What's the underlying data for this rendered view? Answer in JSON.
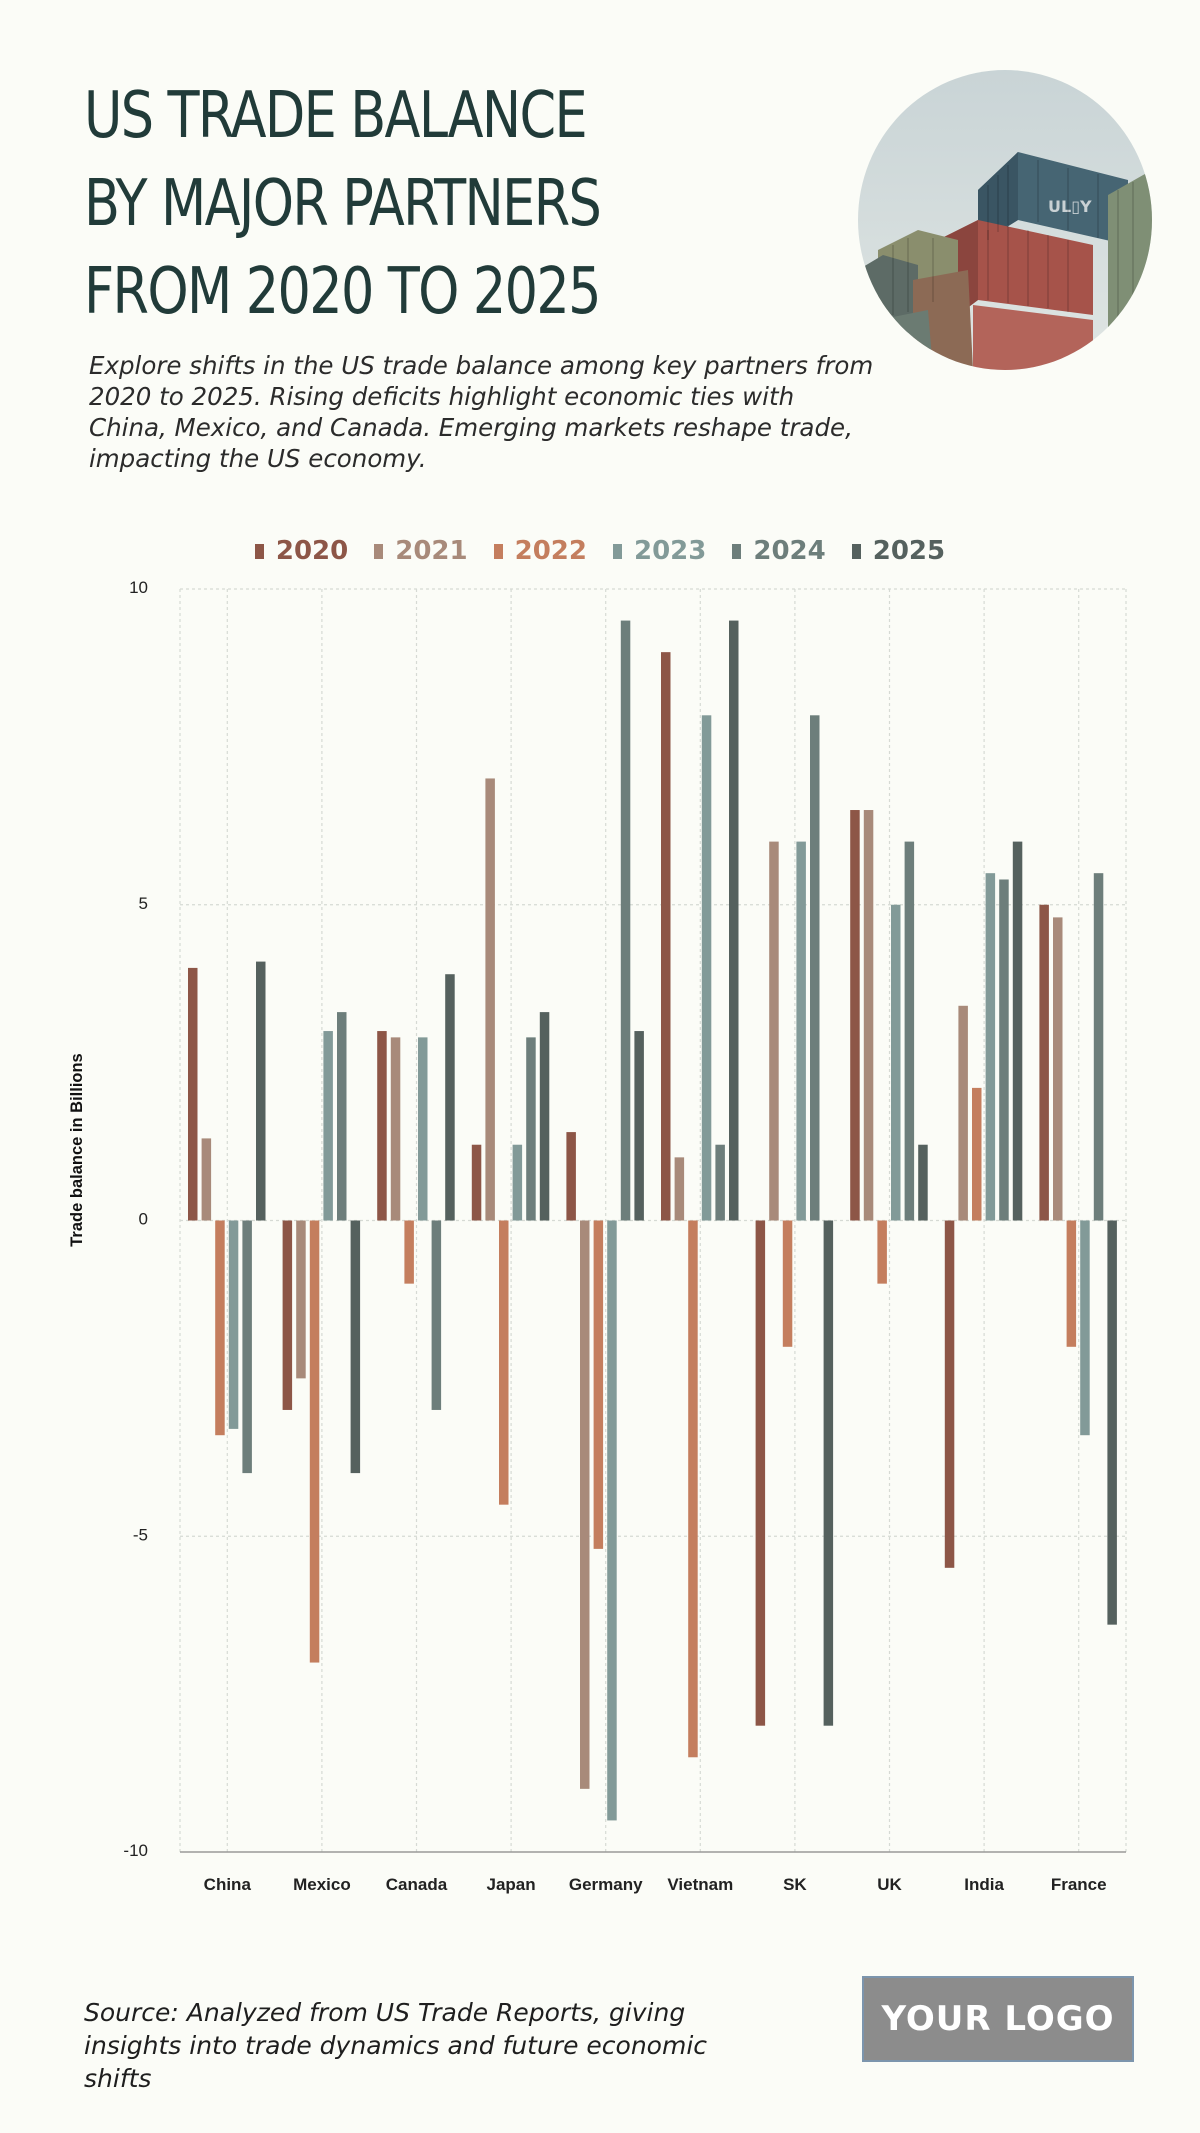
{
  "header": {
    "title": "US TRADE BALANCE BY MAJOR PARTNERS FROM 2020 TO 2025",
    "subtitle": "Explore shifts in the US trade balance among key partners from 2020 to 2025. Rising deficits highlight economic ties with China, Mexico, and Canada. Emerging markets reshape trade, impacting the US economy."
  },
  "photo": {
    "container_text": "UL▯Y"
  },
  "footer": {
    "source": "Source: Analyzed from US Trade Reports, giving insights into trade dynamics and future economic shifts",
    "logo": "YOUR LOGO"
  },
  "chart_data": {
    "type": "bar",
    "title": "",
    "xlabel": "",
    "ylabel": "Trade balance in Billions",
    "ylim": [
      -10,
      10
    ],
    "yticks": [
      10,
      5,
      0,
      -5,
      -10
    ],
    "grid": true,
    "legend_position": "top-center",
    "categories": [
      "China",
      "Mexico",
      "Canada",
      "Japan",
      "Germany",
      "Vietnam",
      "SK",
      "UK",
      "India",
      "France"
    ],
    "series": [
      {
        "name": "2020",
        "color": "#8d5647",
        "values": [
          4.0,
          -3.0,
          3.0,
          1.2,
          1.4,
          9.0,
          -8.0,
          6.5,
          -5.5,
          5.0
        ]
      },
      {
        "name": "2021",
        "color": "#a88a7a",
        "values": [
          1.3,
          -2.5,
          2.9,
          7.0,
          -9.0,
          1.0,
          6.0,
          6.5,
          3.4,
          4.8
        ]
      },
      {
        "name": "2022",
        "color": "#c47e5e",
        "values": [
          -3.4,
          -7.0,
          -1.0,
          -4.5,
          -5.2,
          -8.5,
          -2.0,
          -1.0,
          2.1,
          -2.0
        ]
      },
      {
        "name": "2023",
        "color": "#829a98",
        "values": [
          -3.3,
          3.0,
          2.9,
          1.2,
          -9.5,
          8.0,
          6.0,
          5.0,
          5.5,
          -3.4
        ]
      },
      {
        "name": "2024",
        "color": "#6d7e7b",
        "values": [
          -4.0,
          3.3,
          -3.0,
          2.9,
          9.5,
          1.2,
          8.0,
          6.0,
          5.4,
          5.5
        ]
      },
      {
        "name": "2025",
        "color": "#55615e",
        "values": [
          4.1,
          -4.0,
          3.9,
          3.3,
          3.0,
          9.5,
          -8.0,
          1.2,
          6.0,
          -6.4
        ]
      }
    ]
  }
}
